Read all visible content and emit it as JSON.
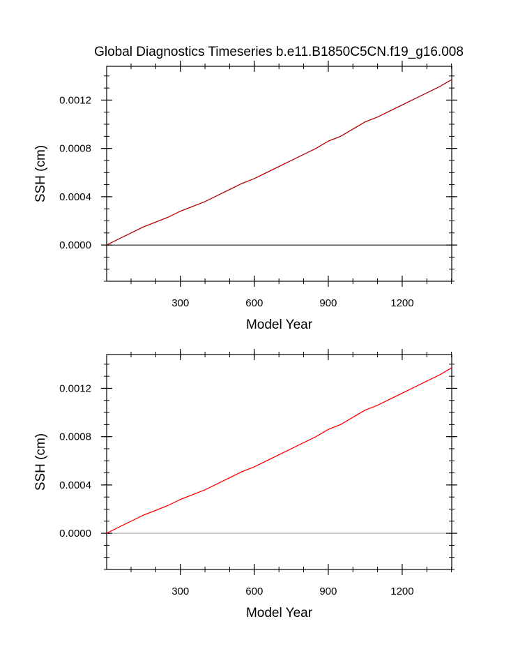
{
  "figure": {
    "title": "Global Diagnostics Timeseries b.e11.B1850C5CN.f19_g16.008"
  },
  "chart_data": [
    {
      "type": "line",
      "title": "Global Diagnostics Timeseries b.e11.B1850C5CN.f19_g16.008",
      "xlabel": "Model Year",
      "ylabel": "SSH (cm)",
      "xlim": [
        1,
        1401
      ],
      "ylim": [
        -0.0003,
        0.00148
      ],
      "x_ticks": [
        300,
        600,
        900,
        1200
      ],
      "x_tick_labels": [
        "300",
        "600",
        "900",
        "1200"
      ],
      "y_ticks": [
        0,
        0.0004,
        0.0008,
        0.0012
      ],
      "y_tick_labels": [
        "0.0000",
        "0.0004",
        "0.0008",
        "0.0012"
      ],
      "zero_line": true,
      "zero_line_color": "#000000",
      "grid": false,
      "series": [
        {
          "color": "#b00000",
          "x": [
            1,
            50,
            100,
            150,
            200,
            250,
            300,
            350,
            400,
            450,
            500,
            550,
            600,
            650,
            700,
            750,
            800,
            850,
            900,
            950,
            1000,
            1050,
            1100,
            1150,
            1200,
            1250,
            1300,
            1350,
            1401
          ],
          "y": [
            0.0,
            5e-05,
            0.0001,
            0.00015,
            0.00019,
            0.00023,
            0.00028,
            0.00032,
            0.00036,
            0.00041,
            0.00046,
            0.00051,
            0.00055,
            0.0006,
            0.00065,
            0.0007,
            0.00075,
            0.0008,
            0.00086,
            0.0009,
            0.00096,
            0.00102,
            0.00106,
            0.00111,
            0.00116,
            0.00121,
            0.00126,
            0.00131,
            0.00137
          ]
        }
      ]
    },
    {
      "type": "line",
      "xlabel": "Model Year",
      "ylabel": "SSH (cm)",
      "xlim": [
        1,
        1401
      ],
      "ylim": [
        -0.0003,
        0.00148
      ],
      "x_ticks": [
        300,
        600,
        900,
        1200
      ],
      "x_tick_labels": [
        "300",
        "600",
        "900",
        "1200"
      ],
      "y_ticks": [
        0,
        0.0004,
        0.0008,
        0.0012
      ],
      "y_tick_labels": [
        "0.0000",
        "0.0004",
        "0.0008",
        "0.0012"
      ],
      "zero_line": true,
      "zero_line_color": "#9a9a9a",
      "grid": false,
      "series": [
        {
          "color": "#ff0000",
          "x": [
            1,
            50,
            100,
            150,
            200,
            250,
            300,
            350,
            400,
            450,
            500,
            550,
            600,
            650,
            700,
            750,
            800,
            850,
            900,
            950,
            1000,
            1050,
            1100,
            1150,
            1200,
            1250,
            1300,
            1350,
            1401
          ],
          "y": [
            0.0,
            5e-05,
            0.0001,
            0.00015,
            0.00019,
            0.00023,
            0.00028,
            0.00032,
            0.00036,
            0.00041,
            0.00046,
            0.00051,
            0.00055,
            0.0006,
            0.00065,
            0.0007,
            0.00075,
            0.0008,
            0.00086,
            0.0009,
            0.00096,
            0.00102,
            0.00106,
            0.00111,
            0.00116,
            0.00121,
            0.00126,
            0.00131,
            0.00137
          ]
        }
      ]
    }
  ]
}
